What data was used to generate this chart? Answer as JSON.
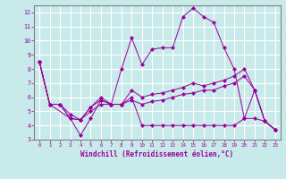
{
  "xlabel": "Windchill (Refroidissement éolien,°C)",
  "bg_color": "#c8eaea",
  "grid_color": "#ffffff",
  "line_color": "#990099",
  "spine_color": "#808080",
  "xlim": [
    -0.5,
    23.5
  ],
  "ylim": [
    3,
    12.5
  ],
  "xticks": [
    0,
    1,
    2,
    3,
    4,
    5,
    6,
    7,
    8,
    9,
    10,
    11,
    12,
    13,
    14,
    15,
    16,
    17,
    18,
    19,
    20,
    21,
    22,
    23
  ],
  "yticks": [
    3,
    4,
    5,
    6,
    7,
    8,
    9,
    10,
    11,
    12
  ],
  "lines": [
    {
      "x": [
        0,
        1,
        3,
        4,
        5,
        6,
        7,
        8,
        9,
        10,
        11,
        12,
        13,
        14,
        15,
        16,
        17,
        18,
        19,
        20,
        21,
        22,
        23
      ],
      "y": [
        8.5,
        5.5,
        4.5,
        3.3,
        4.5,
        5.8,
        5.5,
        8.0,
        10.2,
        8.3,
        9.4,
        9.5,
        9.5,
        11.7,
        12.3,
        11.7,
        11.3,
        9.5,
        8.0,
        4.5,
        6.5,
        4.3,
        3.7
      ]
    },
    {
      "x": [
        0,
        1,
        2,
        3,
        4,
        5,
        6,
        7,
        8,
        9,
        10,
        11,
        12,
        13,
        14,
        15,
        16,
        17,
        18,
        19,
        20,
        21,
        22,
        23
      ],
      "y": [
        8.5,
        5.5,
        5.5,
        4.8,
        4.4,
        5.0,
        5.5,
        5.5,
        5.5,
        5.8,
        5.5,
        5.7,
        5.8,
        6.0,
        6.2,
        6.3,
        6.5,
        6.5,
        6.8,
        7.0,
        7.5,
        6.5,
        4.3,
        3.7
      ]
    },
    {
      "x": [
        0,
        1,
        2,
        3,
        4,
        5,
        6,
        7,
        8,
        9,
        10,
        11,
        12,
        13,
        14,
        15,
        16,
        17,
        18,
        19,
        20,
        21,
        22,
        23
      ],
      "y": [
        8.5,
        5.5,
        5.5,
        4.5,
        4.4,
        5.3,
        6.0,
        5.5,
        5.5,
        6.5,
        6.0,
        6.2,
        6.3,
        6.5,
        6.7,
        7.0,
        6.8,
        7.0,
        7.2,
        7.5,
        8.0,
        6.5,
        4.3,
        3.7
      ]
    },
    {
      "x": [
        0,
        1,
        2,
        3,
        4,
        5,
        6,
        7,
        8,
        9,
        10,
        11,
        12,
        13,
        14,
        15,
        16,
        17,
        18,
        19,
        20,
        21,
        22,
        23
      ],
      "y": [
        8.5,
        5.5,
        5.5,
        4.5,
        4.4,
        5.3,
        5.8,
        5.5,
        5.5,
        6.0,
        4.0,
        4.0,
        4.0,
        4.0,
        4.0,
        4.0,
        4.0,
        4.0,
        4.0,
        4.0,
        4.5,
        4.5,
        4.3,
        3.7
      ]
    }
  ]
}
